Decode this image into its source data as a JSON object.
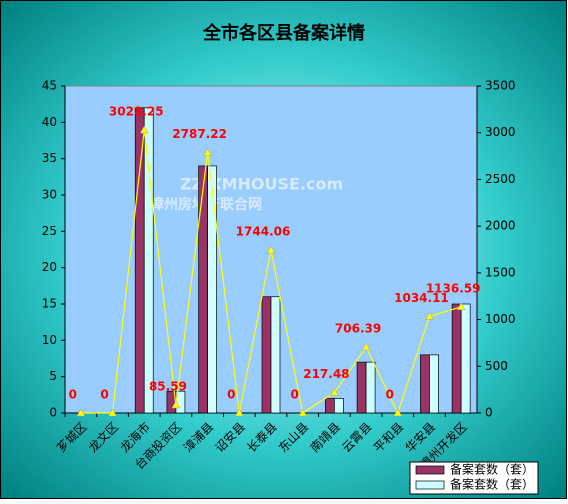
{
  "chart_data": {
    "type": "bar",
    "title": "全市各区县备案详情",
    "watermark": [
      "ZZ.XMHOUSE.com",
      "漳州房地产联合网"
    ],
    "categories": [
      "芗城区",
      "龙文区",
      "龙海市",
      "台商投资区",
      "漳浦县",
      "诏安县",
      "长泰县",
      "东山县",
      "南靖县",
      "云霄县",
      "平和县",
      "华安县",
      "漳州开发区"
    ],
    "series": [
      {
        "name": "备案套数（套）",
        "color": "#993366",
        "values": [
          0,
          0,
          42,
          3,
          34,
          0,
          16,
          0,
          2,
          7,
          0,
          8,
          15
        ]
      },
      {
        "name": "备案套数（套）",
        "color": "#ccffff",
        "values": [
          0,
          0,
          42,
          3,
          34,
          0,
          16,
          0,
          2,
          7,
          0,
          8,
          15
        ]
      },
      {
        "type": "line",
        "axis": "y2",
        "color": "#ffff00",
        "values": [
          0,
          0,
          3028.25,
          85.59,
          2787.22,
          0,
          1744.06,
          0,
          217.48,
          706.39,
          0,
          1034.11,
          1136.59
        ]
      }
    ],
    "ylim": [
      0,
      45
    ],
    "yticks": [
      0,
      5,
      10,
      15,
      20,
      25,
      30,
      35,
      40,
      45
    ],
    "y2lim": [
      0,
      3500
    ],
    "y2ticks": [
      0,
      500,
      1000,
      1500,
      2000,
      2500,
      3000,
      3500
    ],
    "legend": "bottom-right"
  }
}
